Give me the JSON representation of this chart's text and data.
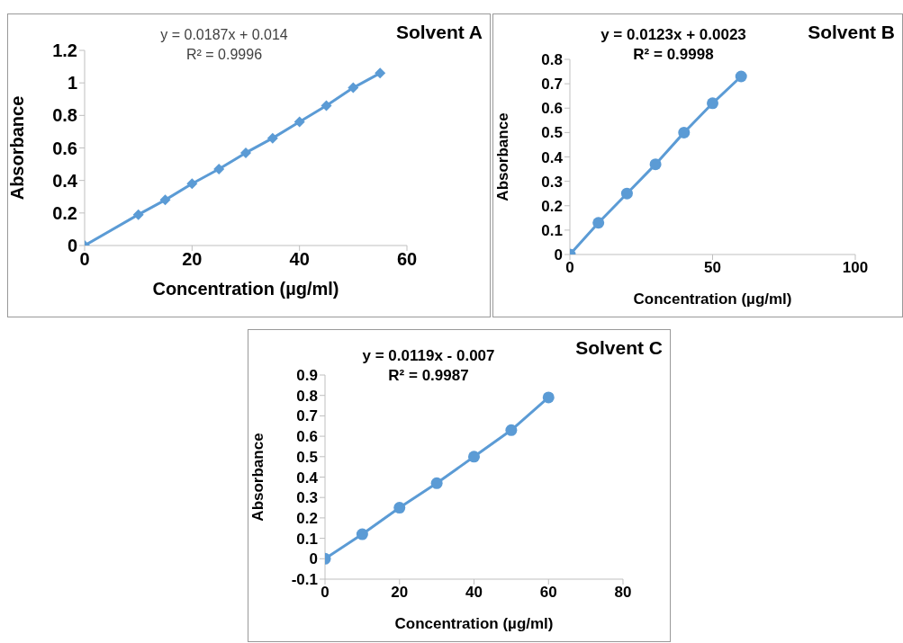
{
  "chart_data": [
    {
      "type": "line",
      "title": "Solvent A",
      "xlabel": "Concentration (µg/ml)",
      "ylabel": "Absorbance",
      "annotations": [
        "y = 0.0187x + 0.014",
        "R² = 0.9996"
      ],
      "x": [
        0,
        10,
        15,
        20,
        25,
        30,
        35,
        40,
        45,
        50,
        55
      ],
      "series": [
        {
          "color": "#5b9bd5",
          "values": [
            0,
            0.19,
            0.28,
            0.38,
            0.47,
            0.57,
            0.66,
            0.76,
            0.86,
            0.97,
            1.06
          ]
        }
      ],
      "xlim": [
        0,
        60
      ],
      "xticks": [
        0,
        20,
        40,
        60
      ],
      "ylim": [
        0,
        1.2
      ],
      "yticks": [
        0,
        0.2,
        0.4,
        0.6,
        0.8,
        1,
        1.2
      ],
      "grid": false,
      "legend": false,
      "marker": "diamond",
      "line_style": "solid"
    },
    {
      "type": "line",
      "title": "Solvent B",
      "xlabel": "Concentration (µg/ml)",
      "ylabel": "Absorbance",
      "annotations": [
        "y = 0.0123x + 0.0023",
        "R² = 0.9998"
      ],
      "x": [
        0,
        10,
        20,
        30,
        40,
        50,
        60
      ],
      "series": [
        {
          "color": "#5b9bd5",
          "values": [
            0,
            0.13,
            0.25,
            0.37,
            0.5,
            0.62,
            0.73
          ]
        }
      ],
      "xlim": [
        0,
        100
      ],
      "xticks": [
        0,
        50,
        100
      ],
      "ylim": [
        0,
        0.8
      ],
      "yticks": [
        0,
        0.1,
        0.2,
        0.3,
        0.4,
        0.5,
        0.6,
        0.7,
        0.8
      ],
      "grid": false,
      "legend": false,
      "marker": "circle",
      "line_style": "solid"
    },
    {
      "type": "line",
      "title": "Solvent C",
      "xlabel": "Concentration (µg/ml)",
      "ylabel": "Absorbance",
      "annotations": [
        "y = 0.0119x - 0.007",
        "R² = 0.9987"
      ],
      "x": [
        0,
        10,
        20,
        30,
        40,
        50,
        60
      ],
      "series": [
        {
          "color": "#5b9bd5",
          "values": [
            0,
            0.12,
            0.25,
            0.37,
            0.5,
            0.63,
            0.79
          ]
        }
      ],
      "xlim": [
        0,
        80
      ],
      "xticks": [
        0,
        20,
        40,
        60,
        80
      ],
      "ylim": [
        -0.1,
        0.9
      ],
      "yticks": [
        -0.1,
        0,
        0.1,
        0.2,
        0.3,
        0.4,
        0.5,
        0.6,
        0.7,
        0.8,
        0.9
      ],
      "grid": false,
      "legend": false,
      "marker": "circle",
      "line_style": "solid"
    }
  ]
}
